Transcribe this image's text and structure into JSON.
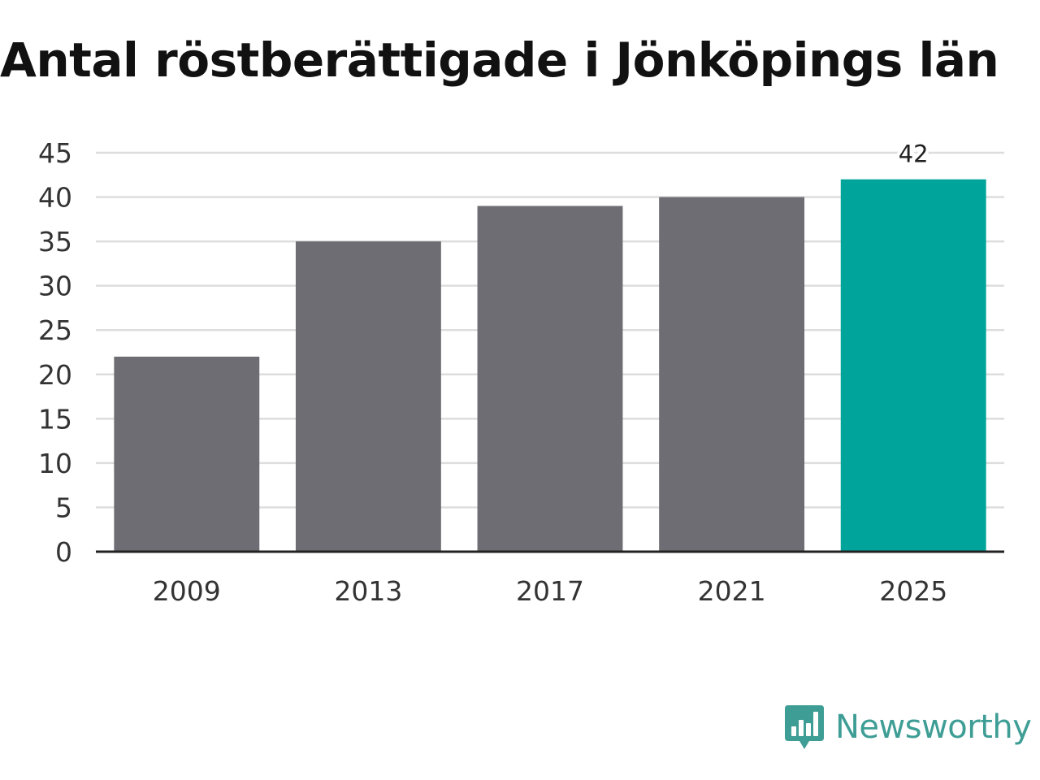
{
  "title": "Antal röstberättigade i Jönköpings län",
  "brand": {
    "name": "Newsworthy",
    "color": "#3e9e95",
    "icon": "newsworthy-logo-icon"
  },
  "colors": {
    "bar": "#6e6d73",
    "highlight": "#00a49a",
    "grid": "#dddddd",
    "axis": "#222222"
  },
  "chart_data": {
    "type": "bar",
    "title": "Antal röstberättigade i Jönköpings län",
    "xlabel": "",
    "ylabel": "",
    "categories": [
      "2009",
      "2013",
      "2017",
      "2021",
      "2025"
    ],
    "values": [
      22,
      35,
      39,
      40,
      42
    ],
    "highlight_index": 4,
    "data_labels": [
      {
        "index": 4,
        "text": "42"
      }
    ],
    "ylim": [
      0,
      45
    ],
    "yticks": [
      0,
      5,
      10,
      15,
      20,
      25,
      30,
      35,
      40,
      45
    ],
    "grid": true,
    "legend": "none"
  }
}
